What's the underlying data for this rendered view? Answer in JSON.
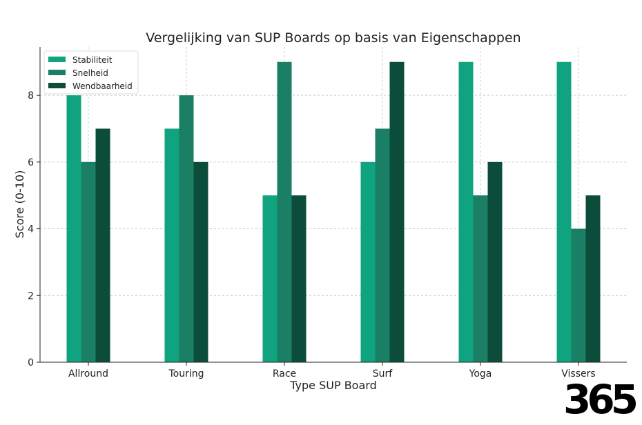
{
  "chart_data": {
    "type": "bar",
    "title": "Vergelijking van SUP Boards op basis van Eigenschappen",
    "xlabel": "Type SUP Board",
    "ylabel": "Score (0-10)",
    "categories": [
      "Allround",
      "Touring",
      "Race",
      "Surf",
      "Yoga",
      "Vissers"
    ],
    "series": [
      {
        "name": "Stabiliteit",
        "values": [
          8,
          7,
          5,
          6,
          9,
          9
        ],
        "color": "#10a37f"
      },
      {
        "name": "Snelheid",
        "values": [
          6,
          8,
          9,
          7,
          5,
          4
        ],
        "color": "#1a7f64"
      },
      {
        "name": "Wendbaarheid",
        "values": [
          7,
          6,
          5,
          9,
          6,
          5
        ],
        "color": "#0b4d3a"
      }
    ],
    "ylim": [
      0,
      9.45
    ],
    "yticks": [
      0,
      2,
      4,
      6,
      8
    ],
    "grid": true,
    "legend": "top-left"
  },
  "logo": "365"
}
